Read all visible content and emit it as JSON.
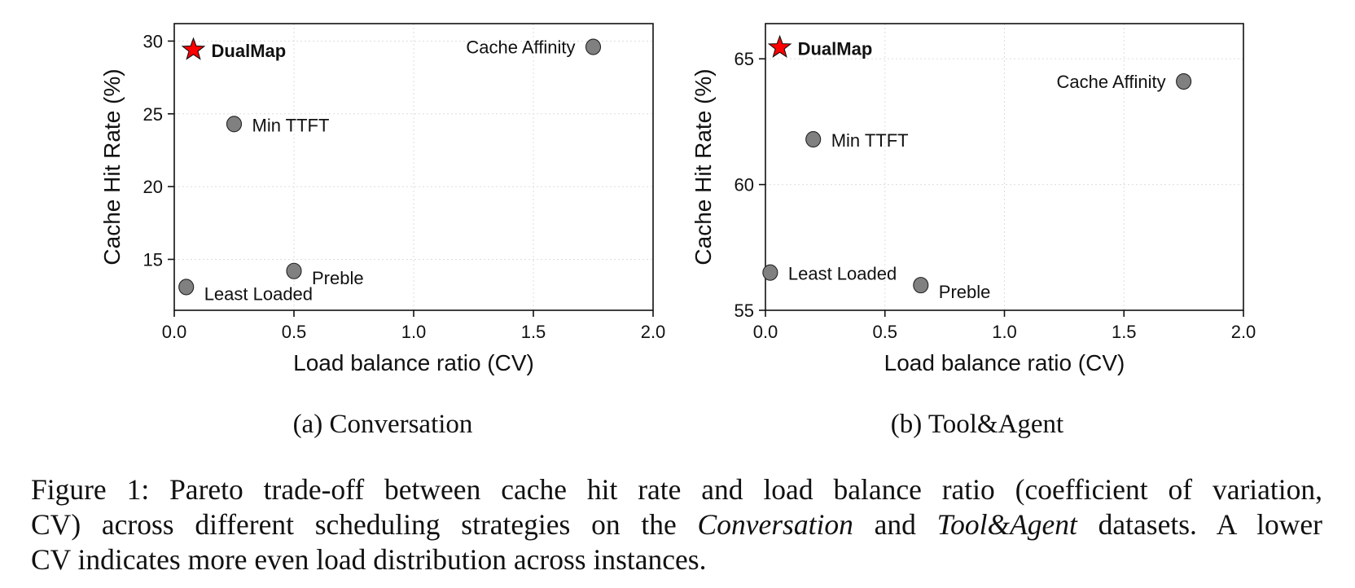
{
  "chart_data": [
    {
      "type": "scatter",
      "id": "a",
      "subcaption": "(a) Conversation",
      "xlabel": "Load balance ratio (CV)",
      "ylabel": "Cache Hit Rate (%)",
      "xlim": [
        0.0,
        2.0
      ],
      "ylim": [
        11.5,
        31.2
      ],
      "xticks": [
        0.0,
        0.5,
        1.0,
        1.5,
        2.0
      ],
      "xtick_labels": [
        "0.0",
        "0.5",
        "1.0",
        "1.5",
        "2.0"
      ],
      "yticks": [
        15,
        20,
        25,
        30
      ],
      "ytick_labels": [
        "15",
        "20",
        "25",
        "30"
      ],
      "grid": true,
      "points": [
        {
          "name": "DualMap",
          "x": 0.08,
          "y": 29.4,
          "marker": "star",
          "color": "#ff0000",
          "highlight": true,
          "label_side": "right"
        },
        {
          "name": "Cache Affinity",
          "x": 1.75,
          "y": 29.6,
          "marker": "circle",
          "color": "#808080",
          "highlight": false,
          "label_side": "left"
        },
        {
          "name": "Min TTFT",
          "x": 0.25,
          "y": 24.3,
          "marker": "circle",
          "color": "#808080",
          "highlight": false,
          "label_side": "right"
        },
        {
          "name": "Preble",
          "x": 0.5,
          "y": 14.2,
          "marker": "circle",
          "color": "#808080",
          "highlight": false,
          "label_side": "right-low"
        },
        {
          "name": "Least Loaded",
          "x": 0.05,
          "y": 13.1,
          "marker": "circle",
          "color": "#808080",
          "highlight": false,
          "label_side": "right-low"
        }
      ]
    },
    {
      "type": "scatter",
      "id": "b",
      "subcaption": "(b) Tool&Agent",
      "xlabel": "Load balance ratio (CV)",
      "ylabel": "Cache Hit Rate (%)",
      "xlim": [
        0.0,
        2.0
      ],
      "ylim": [
        55.0,
        66.4
      ],
      "xticks": [
        0.0,
        0.5,
        1.0,
        1.5,
        2.0
      ],
      "xtick_labels": [
        "0.0",
        "0.5",
        "1.0",
        "1.5",
        "2.0"
      ],
      "yticks": [
        55,
        60,
        65
      ],
      "ytick_labels": [
        "55",
        "60",
        "65"
      ],
      "grid": true,
      "points": [
        {
          "name": "DualMap",
          "x": 0.06,
          "y": 65.45,
          "marker": "star",
          "color": "#ff0000",
          "highlight": true,
          "label_side": "right"
        },
        {
          "name": "Cache Affinity",
          "x": 1.75,
          "y": 64.1,
          "marker": "circle",
          "color": "#808080",
          "highlight": false,
          "label_side": "left"
        },
        {
          "name": "Min TTFT",
          "x": 0.2,
          "y": 61.8,
          "marker": "circle",
          "color": "#808080",
          "highlight": false,
          "label_side": "right"
        },
        {
          "name": "Least Loaded",
          "x": 0.02,
          "y": 56.5,
          "marker": "circle",
          "color": "#808080",
          "highlight": false,
          "label_side": "right"
        },
        {
          "name": "Preble",
          "x": 0.65,
          "y": 56.0,
          "marker": "circle",
          "color": "#808080",
          "highlight": false,
          "label_side": "right-low"
        }
      ]
    }
  ],
  "caption": {
    "line1": "Figure 1:  Pareto trade-off between cache hit rate and load balance ratio (coefficient of variation,",
    "line2_pre": "CV) across different scheduling strategies on the ",
    "line2_em1": "Conversation",
    "line2_mid": " and ",
    "line2_em2": "Tool&Agent",
    "line2_post": " datasets.  A lower",
    "line3": "CV indicates more even load distribution across instances."
  }
}
